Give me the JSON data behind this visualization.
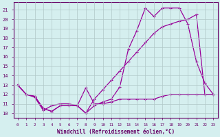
{
  "xlabel": "Windchill (Refroidissement éolien,°C)",
  "background_color": "#d5efef",
  "grid_color": "#b0c8c8",
  "line_color": "#990099",
  "x_ticks": [
    0,
    1,
    2,
    3,
    4,
    5,
    6,
    7,
    8,
    9,
    10,
    11,
    12,
    13,
    14,
    15,
    16,
    17,
    18,
    19,
    20,
    21,
    22,
    23
  ],
  "y_ticks": [
    10,
    11,
    12,
    13,
    14,
    15,
    16,
    17,
    18,
    19,
    20,
    21
  ],
  "ylim": [
    9.5,
    21.8
  ],
  "xlim": [
    -0.5,
    23.5
  ],
  "line_bottom_x": [
    0,
    1,
    2,
    3,
    4,
    5,
    6,
    7,
    8,
    9,
    10,
    11,
    12,
    13,
    14,
    15,
    16,
    17,
    18,
    19,
    20,
    21,
    22,
    23
  ],
  "line_bottom_y": [
    13.0,
    12.0,
    11.7,
    10.3,
    10.8,
    11.0,
    11.0,
    10.8,
    12.7,
    11.0,
    11.0,
    11.2,
    11.5,
    11.5,
    11.5,
    11.5,
    11.5,
    11.8,
    12.0,
    12.0,
    12.0,
    12.0,
    12.0,
    12.0
  ],
  "line_diag_x": [
    0,
    1,
    2,
    3,
    4,
    5,
    6,
    7,
    8,
    9,
    10,
    11,
    12,
    13,
    14,
    15,
    16,
    17,
    18,
    19,
    20,
    21,
    22,
    23
  ],
  "line_diag_y": [
    13.0,
    12.0,
    11.8,
    10.5,
    10.2,
    10.8,
    10.8,
    10.8,
    10.0,
    11.5,
    12.5,
    13.5,
    14.5,
    15.5,
    16.5,
    17.5,
    18.5,
    19.2,
    19.5,
    19.8,
    20.0,
    20.5,
    12.0,
    12.0
  ],
  "line_upper_x": [
    0,
    1,
    2,
    3,
    4,
    5,
    6,
    7,
    8,
    9,
    10,
    11,
    12,
    13,
    14,
    15,
    16,
    17,
    18,
    19,
    20,
    21,
    22,
    23
  ],
  "line_upper_y": [
    13.0,
    12.0,
    11.8,
    10.5,
    10.2,
    10.8,
    10.8,
    10.8,
    10.0,
    10.8,
    11.2,
    11.5,
    12.8,
    16.8,
    18.8,
    21.2,
    20.3,
    21.2,
    21.2,
    21.2,
    19.5,
    15.5,
    13.2,
    12.0
  ]
}
